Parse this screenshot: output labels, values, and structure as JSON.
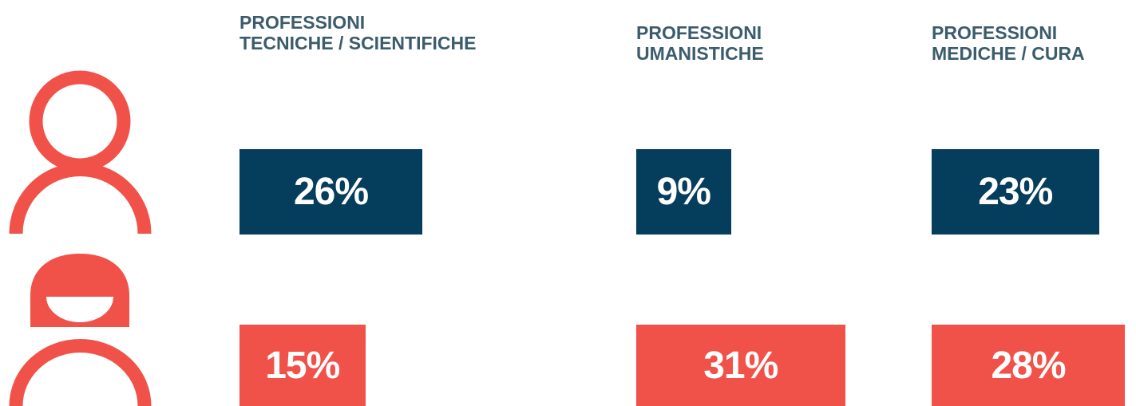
{
  "chart_data": {
    "type": "bar",
    "categories": [
      "PROFESSIONI\nTECNICHE / SCIENTIFICHE",
      "PROFESSIONI\nUMANISTICHE",
      "PROFESSIONI\nMEDICHE / CURA"
    ],
    "series": [
      {
        "color": "#053d5c",
        "values": [
          26,
          9,
          23
        ],
        "value_labels": [
          "26%",
          "9%",
          "23%"
        ]
      },
      {
        "color": "#f0524a",
        "values": [
          15,
          31,
          28
        ],
        "value_labels": [
          "15%",
          "31%",
          "28%"
        ]
      }
    ]
  }
}
